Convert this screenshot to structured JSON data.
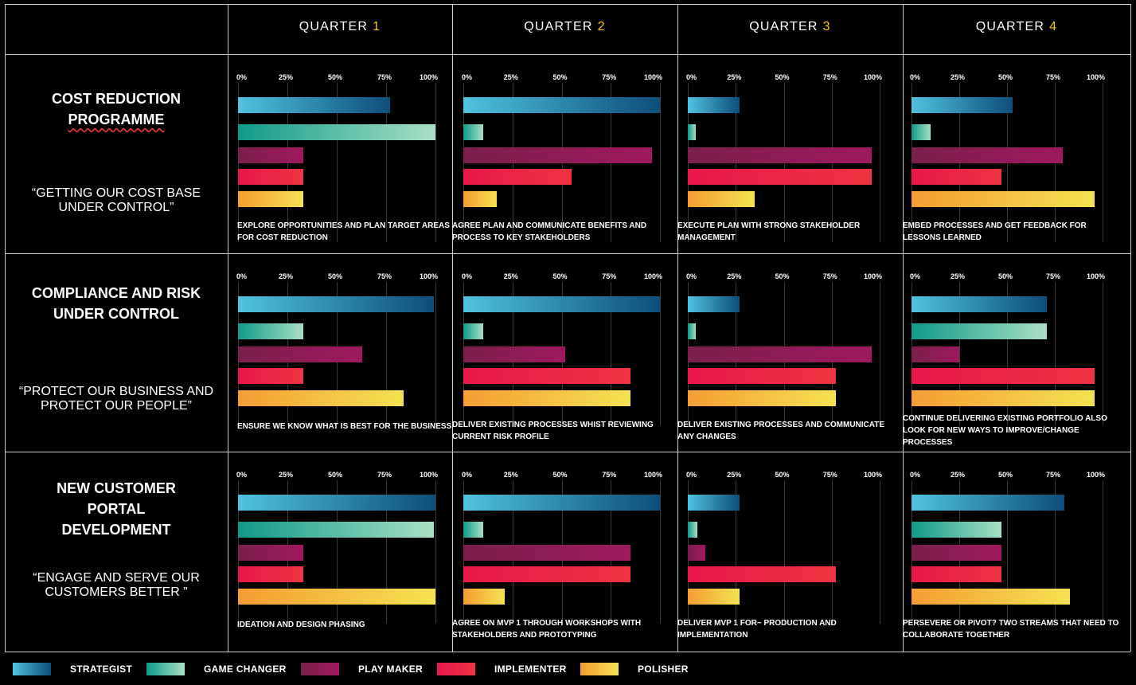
{
  "chart_data": {
    "type": "bar",
    "orientation": "horizontal",
    "axis": {
      "min": 0,
      "max": 100,
      "ticks": [
        "0%",
        "25%",
        "50%",
        "75%",
        "100%"
      ]
    },
    "series_names": [
      "STRATEGIST",
      "GAME CHANGER",
      "PLAY MAKER",
      "IMPLEMENTER",
      "POLISHER"
    ],
    "series_colors": {
      "STRATEGIST": [
        "#4fc3df",
        "#0d4d7a"
      ],
      "GAME CHANGER": [
        "#0f9a8a",
        "#a8e0c4"
      ],
      "PLAY MAKER": [
        "#7a1f4c",
        "#a0185e"
      ],
      "IMPLEMENTER": [
        "#e8184a",
        "#ef3340"
      ],
      "POLISHER": [
        "#f59d33",
        "#f4e252"
      ]
    },
    "quarters": [
      {
        "label": "QUARTER",
        "num": "1"
      },
      {
        "label": "QUARTER",
        "num": "2"
      },
      {
        "label": "QUARTER",
        "num": "3"
      },
      {
        "label": "QUARTER",
        "num": "4"
      }
    ],
    "rows": [
      {
        "title": [
          "COST REDUCTION",
          "PROGRAMME"
        ],
        "quote": [
          "“GETTING OUR COST BASE",
          "UNDER CONTROL”"
        ],
        "cells": [
          {
            "values": [
              77,
              100,
              33,
              33,
              33
            ],
            "caption": [
              "EXPLORE OPPORTUNITIES AND PLAN TARGET AREAS",
              "FOR COST REDUCTION"
            ]
          },
          {
            "values": [
              100,
              10,
              96,
              55,
              17
            ],
            "caption": [
              "AGREE PLAN AND COMMUNICATE BENEFITS AND",
              "PROCESS TO KEY STAKEHOLDERS"
            ]
          },
          {
            "values": [
              27,
              4,
              96,
              96,
              35
            ],
            "caption": [
              "EXECUTE PLAN WITH STRONG STAKEHOLDER",
              "MANAGEMENT"
            ]
          },
          {
            "values": [
              53,
              10,
              79,
              47,
              96
            ],
            "caption": [
              "EMBED PROCESSES AND GET FEEDBACK FOR",
              "LESSONS LEARNED"
            ]
          }
        ]
      },
      {
        "title": [
          "COMPLIANCE AND RISK",
          "UNDER CONTROL"
        ],
        "quote": [
          "“PROTECT OUR BUSINESS AND",
          "PROTECT OUR PEOPLE”"
        ],
        "cells": [
          {
            "values": [
              99,
              33,
              63,
              33,
              84
            ],
            "caption": [
              "ENSURE WE KNOW WHAT IS BEST FOR THE BUSINESS"
            ]
          },
          {
            "values": [
              100,
              10,
              52,
              85,
              85
            ],
            "caption": [
              "DELIVER EXISTING PROCESSES WHIST REVIEWING",
              "CURRENT RISK PROFILE"
            ]
          },
          {
            "values": [
              27,
              4,
              96,
              77,
              77
            ],
            "caption": [
              "DELIVER EXISTING PROCESSES AND COMMUNICATE",
              "ANY CHANGES"
            ]
          },
          {
            "values": [
              71,
              71,
              25,
              96,
              96
            ],
            "caption": [
              "CONTINUE DELIVERING EXISTING PORTFOLIO ALSO",
              "LOOK FOR NEW WAYS TO IMPROVE/CHANGE",
              "PROCESSES"
            ]
          }
        ]
      },
      {
        "title": [
          "NEW CUSTOMER",
          "PORTAL",
          "DEVELOPMENT"
        ],
        "quote": [
          "“ENGAGE AND SERVE OUR",
          "CUSTOMERS BETTER ”"
        ],
        "cells": [
          {
            "values": [
              100,
              99,
              33,
              33,
              100
            ],
            "caption": [
              "IDEATION AND DESIGN PHASING"
            ]
          },
          {
            "values": [
              100,
              10,
              85,
              85,
              21
            ],
            "caption": [
              "AGREE ON MVP 1 THROUGH WORKSHOPS WITH",
              "STAKEHOLDERS AND PROTOTYPING"
            ]
          },
          {
            "values": [
              27,
              5,
              9,
              77,
              27
            ],
            "caption": [
              "DELIVER MVP 1 FOR~ PRODUCTION AND",
              "IMPLEMENTATION"
            ]
          },
          {
            "values": [
              80,
              47,
              47,
              47,
              83
            ],
            "caption": [
              "PERSEVERE OR PIVOT? TWO STREAMS THAT NEED TO",
              "COLLABORATE TOGETHER"
            ]
          }
        ]
      }
    ]
  }
}
